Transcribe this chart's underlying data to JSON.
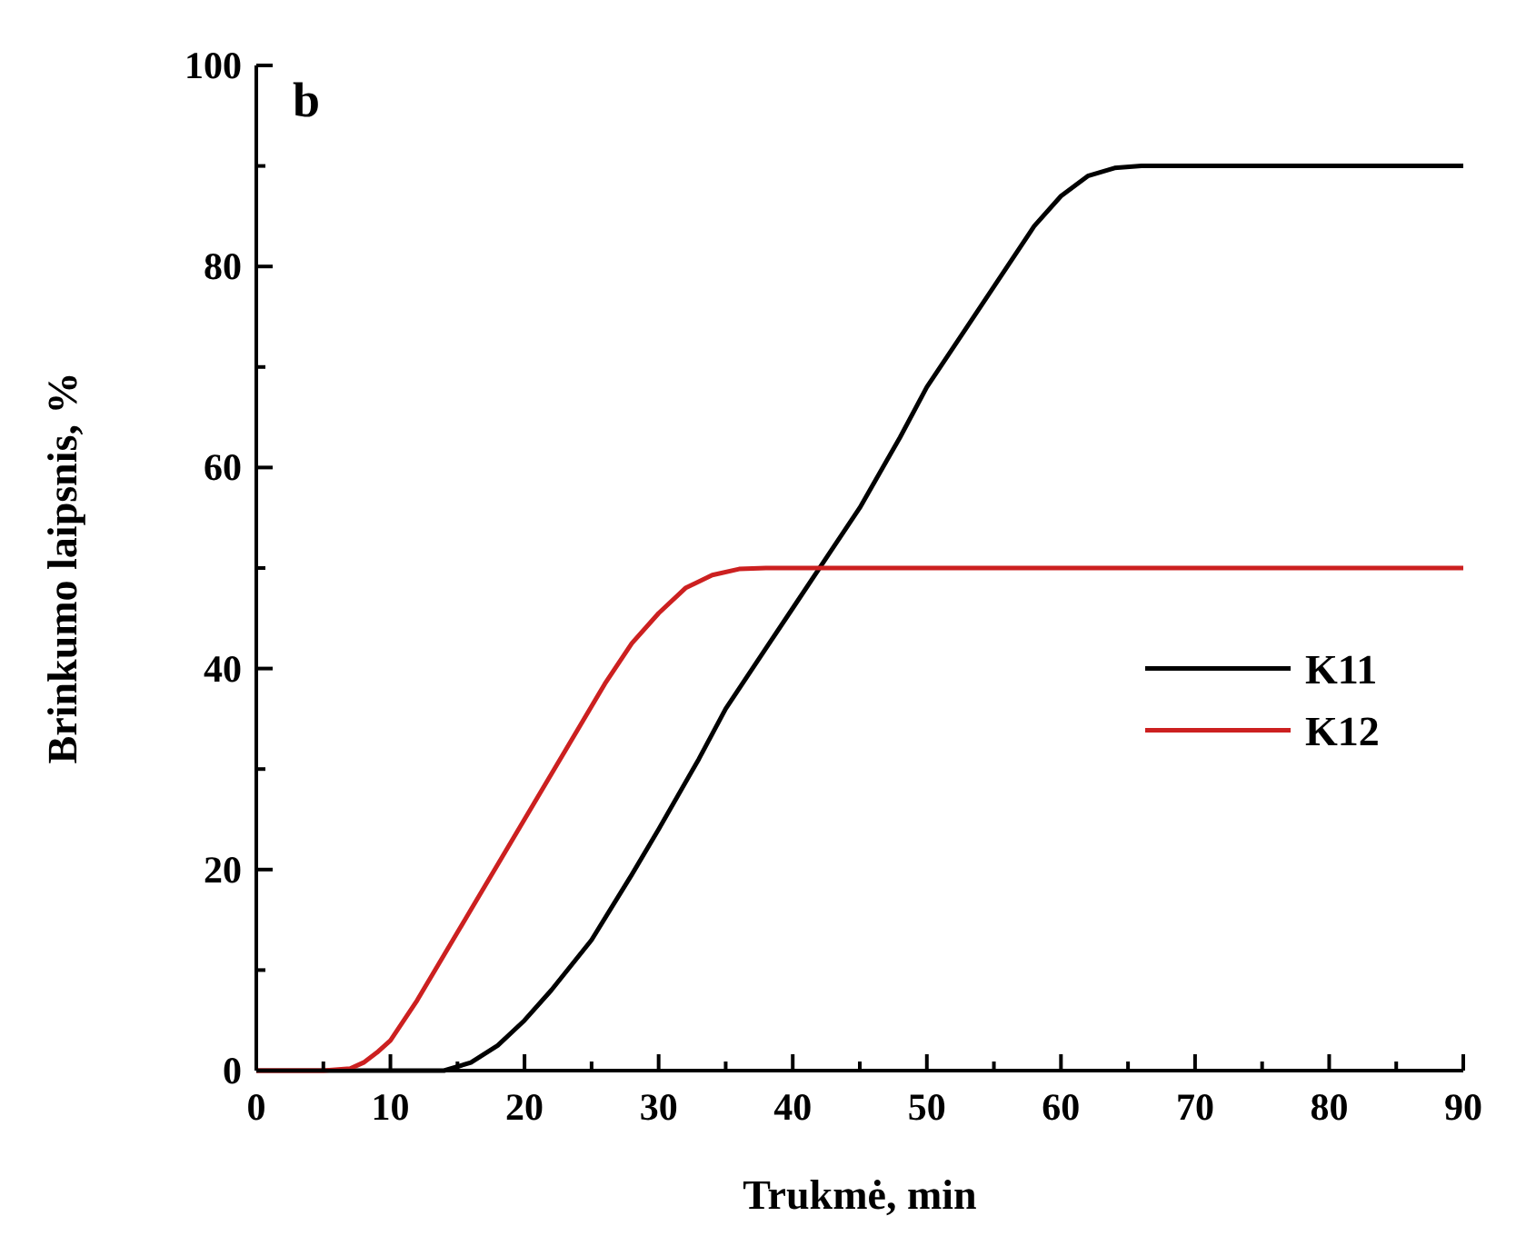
{
  "chart_data": {
    "type": "line",
    "xlabel": "Trukmė, min",
    "ylabel": "Brinkumo laipsnis, %",
    "annotations": [
      "b"
    ],
    "xlim": [
      0,
      90
    ],
    "ylim": [
      0,
      100
    ],
    "xticks": [
      0,
      {
        "value": 5,
        "label": null
      },
      10,
      {
        "value": 15,
        "label": null
      },
      20,
      {
        "value": 25,
        "label": null
      },
      30,
      {
        "value": 35,
        "label": null
      },
      40,
      {
        "value": 45,
        "label": null
      },
      50,
      {
        "value": 55,
        "label": null
      },
      60,
      {
        "value": 65,
        "label": null
      },
      70,
      {
        "value": 75,
        "label": null
      },
      80,
      {
        "value": 85,
        "label": null
      },
      90
    ],
    "yticks": [
      0,
      {
        "value": 10,
        "label": null
      },
      20,
      {
        "value": 30,
        "label": null
      },
      40,
      {
        "value": 50,
        "label": null
      },
      60,
      {
        "value": 70,
        "label": null
      },
      80,
      {
        "value": 90,
        "label": null
      },
      100
    ],
    "grid": false,
    "legend": "right",
    "line_style": "solid",
    "marker": "none",
    "series": [
      {
        "name": "K11",
        "color": "#000000",
        "x": [
          0,
          10,
          14,
          16,
          18,
          20,
          22,
          25,
          28,
          30,
          33,
          35,
          38,
          40,
          42.5,
          45,
          48,
          50,
          53,
          55,
          58,
          60,
          62,
          64,
          66,
          68,
          70,
          80,
          90
        ],
        "values": [
          0,
          0,
          0,
          0.8,
          2.5,
          5,
          8,
          13,
          19.5,
          24,
          31,
          36,
          42,
          46,
          51,
          56,
          63,
          68,
          74,
          78,
          84,
          87,
          89,
          89.8,
          90,
          90,
          90,
          90,
          90
        ]
      },
      {
        "name": "K12",
        "color": "#cc2020",
        "x": [
          0,
          5,
          7,
          8,
          9,
          10,
          12,
          14,
          16,
          18,
          20,
          22,
          24,
          26,
          28,
          30,
          32,
          34,
          36,
          38,
          40,
          50,
          60,
          70,
          80,
          90
        ],
        "values": [
          0,
          0,
          0.2,
          0.8,
          1.8,
          3,
          7,
          11.5,
          16,
          20.5,
          25,
          29.5,
          34,
          38.5,
          42.5,
          45.5,
          48,
          49.3,
          49.9,
          50,
          50,
          50,
          50,
          50,
          50,
          50
        ]
      }
    ]
  }
}
